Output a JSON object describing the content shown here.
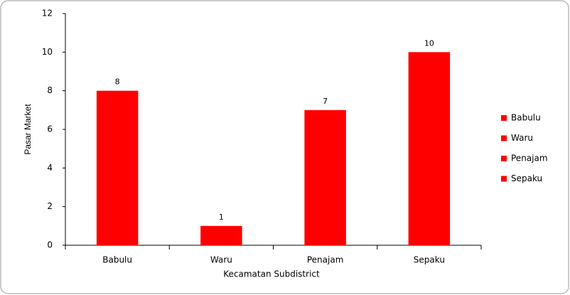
{
  "chart_data": {
    "type": "bar",
    "categories": [
      "Babulu",
      "Waru",
      "Penajam",
      "Sepaku"
    ],
    "values": [
      8,
      1,
      7,
      10
    ],
    "color": "#ff0000",
    "x_label": "Kecamatan Subdistrict",
    "y_label": "Pasar Market",
    "ylim": [
      0,
      12
    ],
    "yticks": [
      0,
      2,
      4,
      6,
      8,
      10,
      12
    ],
    "legend": "right",
    "data_labels": true
  }
}
